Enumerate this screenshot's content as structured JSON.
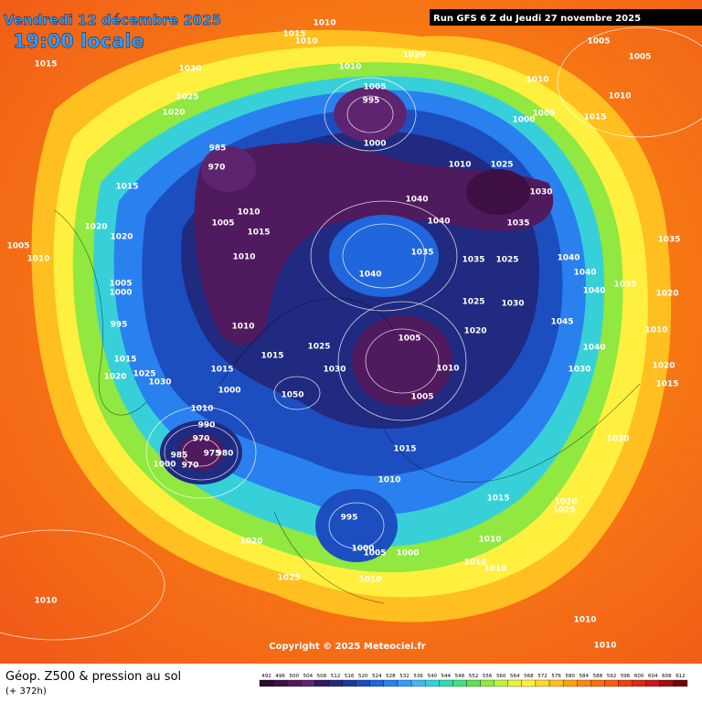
{
  "header": {
    "date": "Vendredi 12 décembre 2025",
    "time": "19:00 locale",
    "run": "Run GFS 6 Z du Jeudi 27 novembre 2025"
  },
  "map": {
    "pressure_labels": [
      1010,
      1015,
      1010,
      1015,
      1030,
      1020,
      1025,
      1020,
      1010,
      1005,
      995,
      1000,
      1010,
      1005,
      1005,
      1010,
      1015,
      1000,
      1005,
      1010,
      1025,
      1030,
      1035,
      1040,
      1040,
      1035,
      1040,
      1035,
      1025,
      1025,
      1030,
      1020,
      1005,
      1010,
      1005,
      1040,
      1040,
      1040,
      1035,
      1035,
      1045,
      1040,
      1030,
      1020,
      1010,
      1020,
      1015,
      1030,
      1015,
      1010,
      1015,
      1020,
      1025,
      995,
      1000,
      1005,
      1000,
      1010,
      1010,
      1010,
      1010,
      1025,
      1020,
      1010,
      1010,
      1010,
      1015,
      1020,
      1020,
      1005,
      1010,
      1005,
      1000,
      995,
      1015,
      1020,
      1025,
      1030,
      1015,
      1010,
      1015,
      1025,
      1030,
      1050,
      1000,
      1010,
      990,
      970,
      985,
      975,
      980,
      1000,
      970,
      985,
      970,
      1010,
      1005,
      1015,
      1010
    ],
    "copyright": "Copyright © 2025 Meteociel.fr"
  },
  "footer": {
    "title": "Géop. Z500 & pression au sol",
    "lead": "(+ 372h)"
  },
  "scale": {
    "values": [
      492,
      496,
      500,
      504,
      508,
      512,
      516,
      520,
      524,
      528,
      532,
      536,
      540,
      544,
      548,
      552,
      556,
      560,
      564,
      568,
      572,
      576,
      580,
      584,
      588,
      592,
      596,
      600,
      604,
      608,
      612
    ],
    "colors": [
      "#2a0a2e",
      "#3d0f45",
      "#501a5e",
      "#5e2470",
      "#2e1a66",
      "#1f2a80",
      "#1b3aa0",
      "#1c4ec0",
      "#2066dc",
      "#2a80ee",
      "#3a9af5",
      "#40b8f0",
      "#38d0d8",
      "#30dcb0",
      "#40e080",
      "#60e050",
      "#90e840",
      "#c0f040",
      "#e8f040",
      "#fff040",
      "#ffd830",
      "#ffbf20",
      "#ffa010",
      "#ff8810",
      "#ff7010",
      "#ff5a10",
      "#f04010",
      "#e02810",
      "#c81818",
      "#a01010",
      "#700808"
    ]
  }
}
